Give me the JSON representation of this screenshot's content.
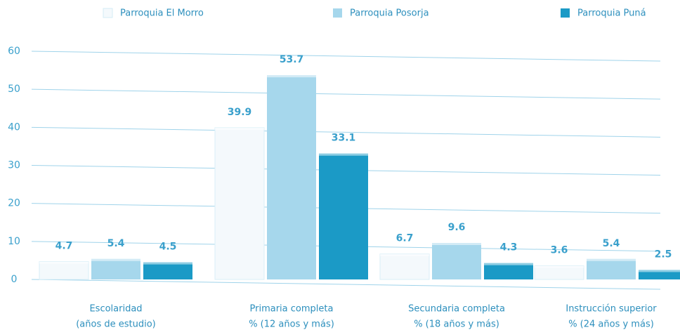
{
  "chart_data": {
    "type": "bar",
    "categories": [
      [
        "Escolaridad",
        "(años de estudio)"
      ],
      [
        "Primaria completa",
        "% (12 años y más)"
      ],
      [
        "Secundaria completa",
        "% (18 años y más)"
      ],
      [
        "Instrucción superior",
        "% (24 años y más)"
      ]
    ],
    "series": [
      {
        "name": "Parroquia El Morro",
        "color": "#f4f9fc",
        "values": [
          4.7,
          39.9,
          6.7,
          3.6
        ]
      },
      {
        "name": "Parroquia Posorja",
        "color": "#a6d7ec",
        "values": [
          5.4,
          53.7,
          9.6,
          5.4
        ]
      },
      {
        "name": "Parroquia Puná",
        "color": "#1b9ac6",
        "values": [
          4.5,
          33.1,
          4.3,
          2.5
        ]
      }
    ],
    "ylim": [
      0,
      60
    ],
    "yticks": [
      0,
      10,
      20,
      30,
      40,
      50,
      60
    ],
    "grid": true,
    "legend": "top"
  }
}
